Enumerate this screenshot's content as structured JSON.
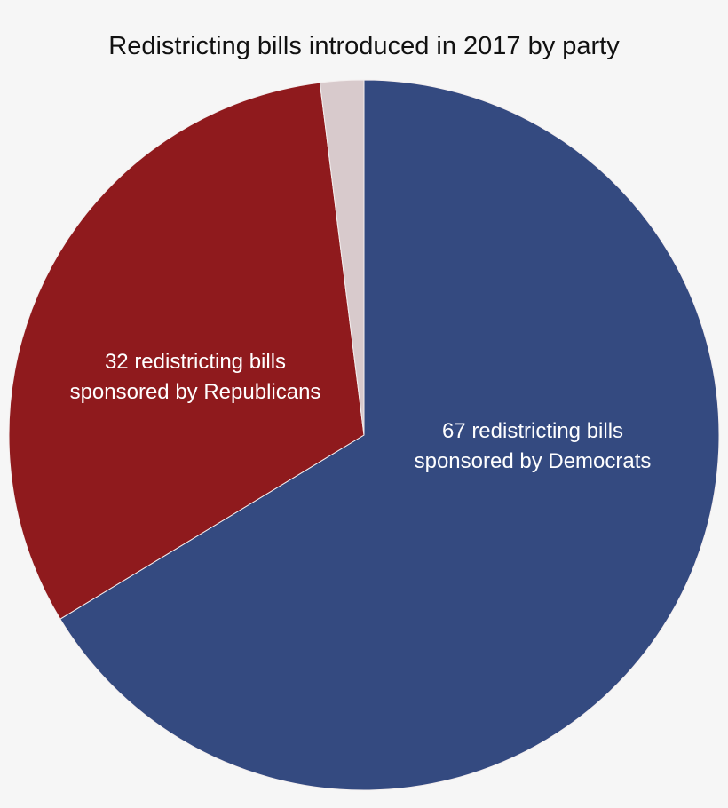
{
  "chart_data": {
    "type": "pie",
    "title": "Redistricting bills introduced in 2017 by party",
    "start": "top",
    "direction": "clockwise",
    "slices": [
      {
        "value": 67,
        "label": [
          "67 redistricting bills",
          "sponsored by Democrats"
        ],
        "color": "#344a80"
      },
      {
        "value": 32,
        "label": [
          "32 redistricting bills",
          "sponsored by Republicans"
        ],
        "color": "#8f1a1d"
      },
      {
        "value": 2,
        "label": [],
        "color": "#d8cacc"
      }
    ],
    "legend": "none"
  }
}
